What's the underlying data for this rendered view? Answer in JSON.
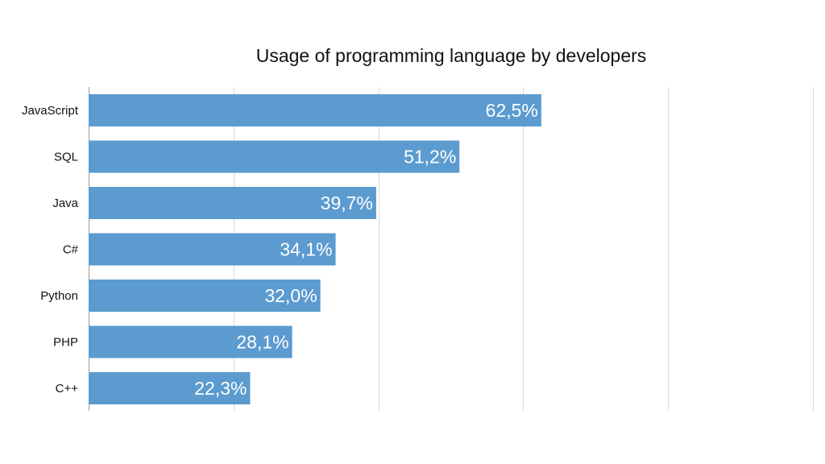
{
  "chart_data": {
    "type": "bar",
    "orientation": "horizontal",
    "title": "Usage of programming language by developers",
    "categories": [
      "JavaScript",
      "SQL",
      "Java",
      "C#",
      "Python",
      "PHP",
      "C++"
    ],
    "values": [
      62.5,
      51.2,
      39.7,
      34.1,
      32.0,
      28.1,
      22.3
    ],
    "value_labels": [
      "62,5%",
      "51,2%",
      "39,7%",
      "34,1%",
      "32,0%",
      "28,1%",
      "22,3%"
    ],
    "xlim": [
      0,
      100
    ],
    "gridlines": [
      20,
      40,
      60,
      80,
      100
    ],
    "grid": true,
    "bar_color": "#5b9bcf",
    "label_color": "#ffffff",
    "xlabel": "",
    "ylabel": ""
  }
}
